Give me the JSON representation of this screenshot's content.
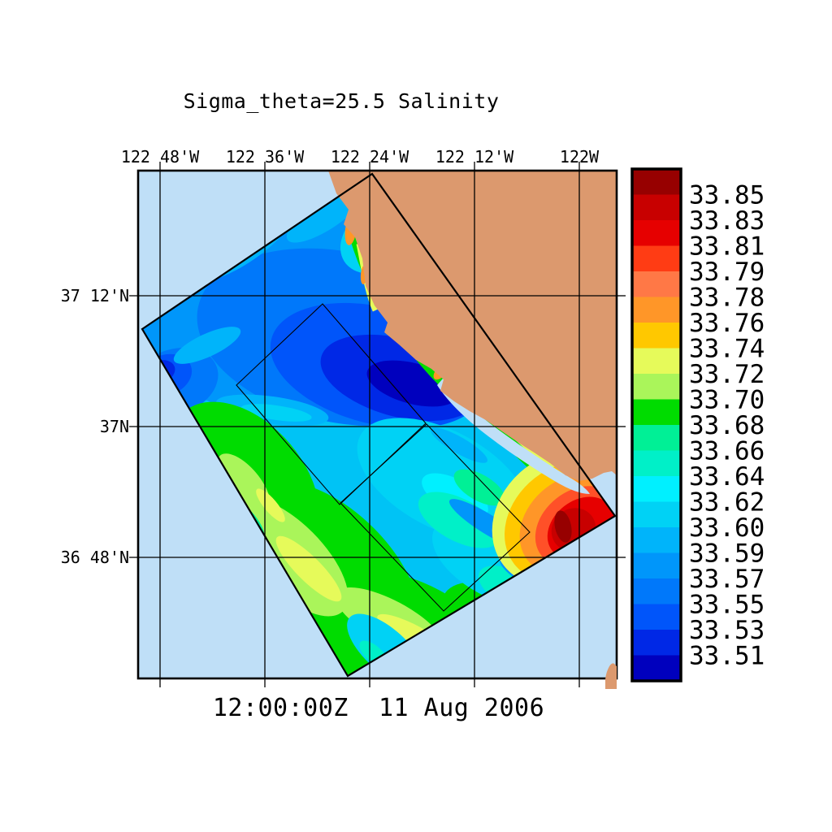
{
  "figure": {
    "title": "Sigma_theta=25.5 Salinity",
    "timestamp": "12:00:00Z  11 Aug 2006"
  },
  "map": {
    "x_axis_labels": [
      "122 48'W",
      "122 36'W",
      "122 24'W",
      "122 12'W",
      "122W"
    ],
    "y_axis_labels": [
      "37 12'N",
      "37N",
      "36 48'N"
    ]
  },
  "colorbar": {
    "labels": [
      "33.85",
      "33.83",
      "33.81",
      "33.79",
      "33.78",
      "33.76",
      "33.74",
      "33.72",
      "33.70",
      "33.68",
      "33.66",
      "33.64",
      "33.62",
      "33.60",
      "33.59",
      "33.57",
      "33.55",
      "33.53",
      "33.51"
    ],
    "band_colors_top_to_bottom": [
      "#970000",
      "#C80000",
      "#E60000",
      "#FF3C14",
      "#FF7846",
      "#FF9628",
      "#FFC800",
      "#E6FA5A",
      "#AAF55A",
      "#00DC00",
      "#00F096",
      "#00F0C8",
      "#00F0FF",
      "#00D2F5",
      "#00B4FA",
      "#0096FA",
      "#0078FA",
      "#0055FA",
      "#0028E6",
      "#0000BE"
    ]
  },
  "colors": {
    "background": "#FFFFFF",
    "ocean": "#BFDFF7",
    "land": "#DC996E",
    "axis": "#000000"
  },
  "chart_data": {
    "type": "heatmap",
    "title": "Sigma_theta=25.5 Salinity",
    "timestamp_label": "12:00:00Z  11 Aug 2006",
    "x_axis": {
      "ticks": [
        "122 48'W",
        "122 36'W",
        "122 24'W",
        "122 12'W",
        "122W"
      ],
      "meaning": "longitude (degrees west)"
    },
    "y_axis": {
      "ticks": [
        "37 12'N",
        "37N",
        "36 48'N"
      ],
      "meaning": "latitude (degrees north)"
    },
    "colorbar": {
      "position": "right",
      "tick_values": [
        33.85,
        33.83,
        33.81,
        33.79,
        33.78,
        33.76,
        33.74,
        33.72,
        33.7,
        33.68,
        33.66,
        33.64,
        33.62,
        33.6,
        33.59,
        33.57,
        33.55,
        33.53,
        33.51
      ],
      "n_color_bands": 20,
      "value_range": [
        33.51,
        33.85
      ]
    },
    "grid": true,
    "features": [
      "Salinity field on the sigma_theta=25.5 isopycnal shown inside a rotated rectangular survey swath off Monterey Bay, California",
      "Low-salinity eddy core (approx 33.51-33.55, dark blue) centered offshore near 122 30'W, 37 05'N",
      "Second small low-salinity patch at the western corner of the swath near 122 48'W, 37 08'N",
      "Green to yellow bands (approx 33.66-33.74) across the southwestern half of the swath and along the coast",
      "High-salinity plume (up to approx 33.85, red/dark red) against the coast near the southeastern corner of the swath around 122W, 36 52'N",
      "Two thin nested survey boxes drawn inside the swath along its long axis",
      "Tan area is land (California coast, Monterey Bay); pale blue is ocean with no data; narrow pale-blue strip hugs the coast inside the bay"
    ]
  }
}
